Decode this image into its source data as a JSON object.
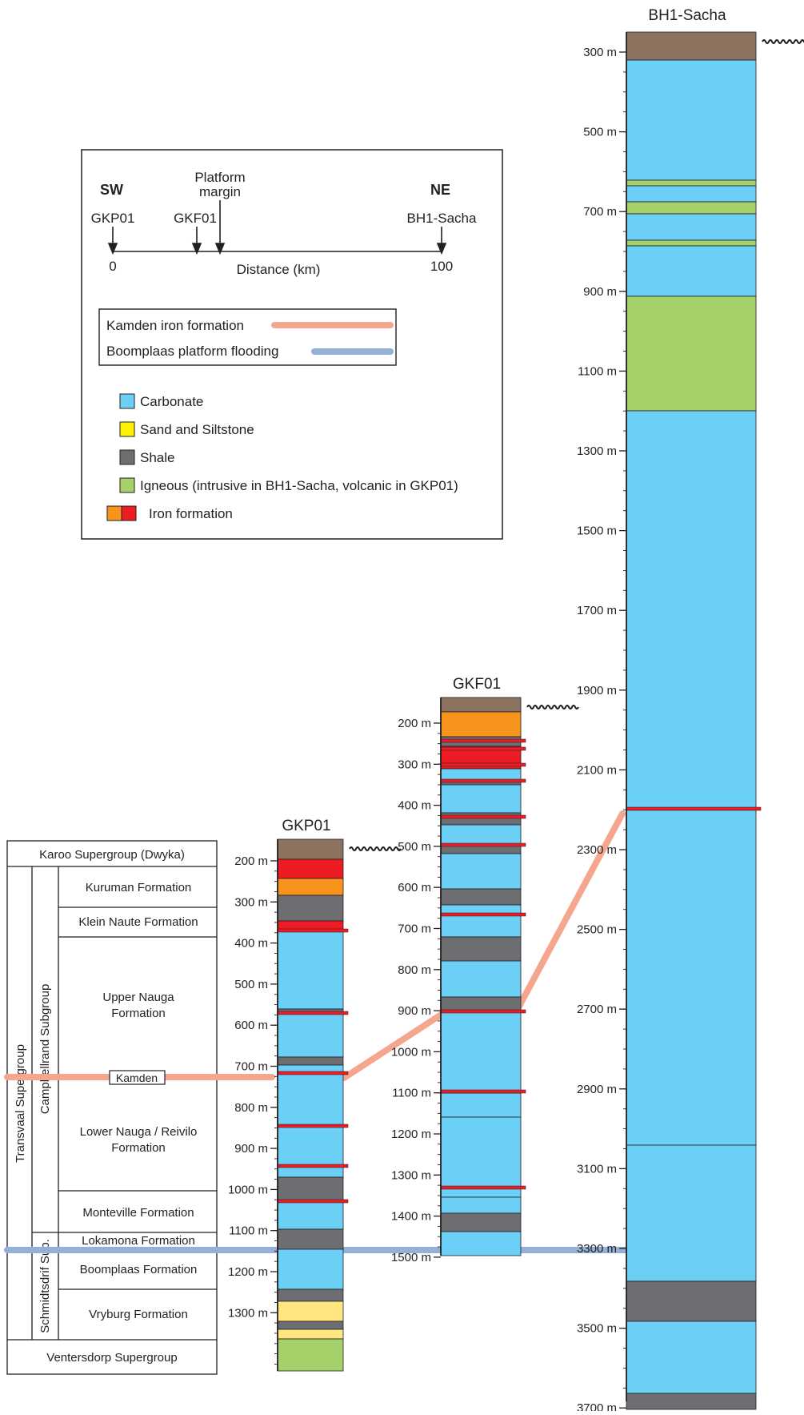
{
  "legend": {
    "sw_label": "SW",
    "ne_label": "NE",
    "platform_label_1": "Platform",
    "platform_label_2": "margin",
    "wells": [
      "GKP01",
      "GKF01",
      "BH1-Sacha"
    ],
    "distance_ticks": [
      "0",
      "100"
    ],
    "distance_label": "Distance (km)",
    "correlation_lines": [
      {
        "label": "Kamden iron formation",
        "color": "#f4a78e"
      },
      {
        "label": "Boomplaas platform flooding",
        "color": "#94b0d8"
      }
    ],
    "lithology": [
      {
        "label": "Carbonate",
        "color": "#6ccff6"
      },
      {
        "label": "Sand and Siltstone",
        "color": "#fff200"
      },
      {
        "label": "Shale",
        "color": "#6d6e71"
      },
      {
        "label": "Igneous (intrusive in BH1-Sacha, volcanic in GKP01)",
        "color": "#a6d06a"
      },
      {
        "label": "Iron formation",
        "color": "#ed1c24",
        "color2": "#f7941d"
      }
    ]
  },
  "stratigraphy": {
    "top": "Karoo Supergroup (Dwyka)",
    "supergroup": "Transvaal Supergroup",
    "subgroup_1": "Campbellrand Subgroup",
    "subgroup_2": "Schmidtsdrif Sub.",
    "formations": [
      "Kuruman Formation",
      "Klein Naute Formation",
      "Upper Nauga Formation",
      "Lower Nauga / Reivilo Formation",
      "Monteville Formation",
      "Lokamona Formation",
      "Boomplaas Formation",
      "Vryburg Formation"
    ],
    "kamden_marker": "Kamden",
    "bottom": "Ventersdorp Supergroup"
  },
  "columns": [
    {
      "name": "GKP01",
      "depth_labels": [
        "200 m",
        "300 m",
        "400 m",
        "500 m",
        "600 m",
        "700 m",
        "800 m",
        "900 m",
        "1000 m",
        "1100 m",
        "1200 m",
        "1300 m"
      ]
    },
    {
      "name": "GKF01",
      "depth_labels": [
        "200 m",
        "300 m",
        "400 m",
        "500 m",
        "600 m",
        "700 m",
        "800 m",
        "900 m",
        "1000 m",
        "1100 m",
        "1200 m",
        "1300 m",
        "1400 m",
        "1500 m"
      ]
    },
    {
      "name": "BH1-Sacha",
      "depth_labels": [
        "300 m",
        "500 m",
        "700 m",
        "900 m",
        "1100 m",
        "1300 m",
        "1500 m",
        "1700 m",
        "1900 m",
        "2100 m",
        "2300 m",
        "2500 m",
        "2700 m",
        "2900 m",
        "3100 m",
        "3300 m",
        "3500 m",
        "3700 m"
      ]
    }
  ]
}
